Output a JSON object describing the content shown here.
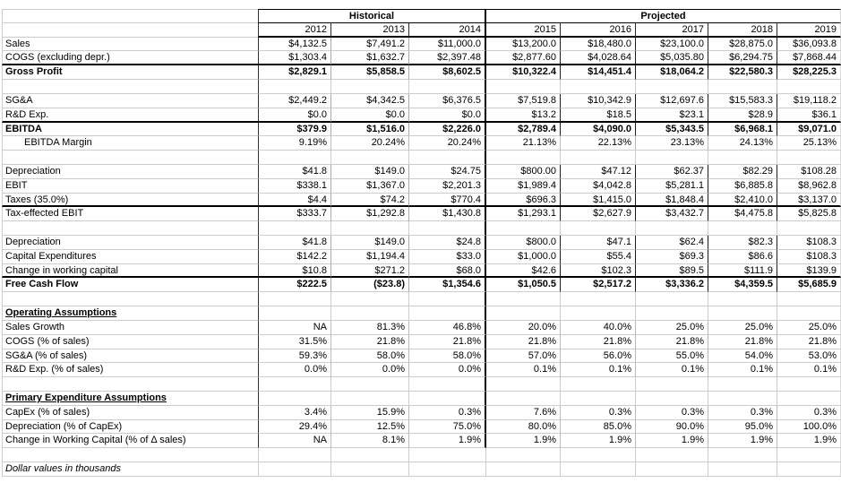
{
  "sheet": {
    "group_headers": [
      {
        "label": "Historical",
        "span": 3
      },
      {
        "label": "Projected",
        "span": 5
      }
    ],
    "years": [
      "2012",
      "2013",
      "2014",
      "2015",
      "2016",
      "2017",
      "2018",
      "2019"
    ],
    "rows": [
      {
        "label": "Sales",
        "style": "money",
        "values": [
          "$4,132.5",
          "$7,491.2",
          "$11,000.0",
          "$13,200.0",
          "$18,480.0",
          "$23,100.0",
          "$28,875.0",
          "$36,093.8"
        ]
      },
      {
        "label": "COGS (excluding depr.)",
        "style": "money",
        "rule_below": true,
        "values": [
          "$1,303.4",
          "$1,632.7",
          "$2,397.48",
          "$2,877.60",
          "$4,028.64",
          "$5,035.80",
          "$6,294.75",
          "$7,868.44"
        ]
      },
      {
        "label": "Gross Profit",
        "style": "money",
        "bold": true,
        "values": [
          "$2,829.1",
          "$5,858.5",
          "$8,602.5",
          "$10,322.4",
          "$14,451.4",
          "$18,064.2",
          "$22,580.3",
          "$28,225.3"
        ]
      },
      {
        "label": "",
        "style": "blank",
        "values": []
      },
      {
        "label": "SG&A",
        "style": "money",
        "values": [
          "$2,449.2",
          "$4,342.5",
          "$6,376.5",
          "$7,519.8",
          "$10,342.9",
          "$12,697.6",
          "$15,583.3",
          "$19,118.2"
        ]
      },
      {
        "label": "R&D Exp.",
        "style": "money",
        "rule_below": true,
        "values": [
          "$0.0",
          "$0.0",
          "$0.0",
          "$13.2",
          "$18.5",
          "$23.1",
          "$28.9",
          "$36.1"
        ]
      },
      {
        "label": "EBITDA",
        "style": "money",
        "bold": true,
        "values": [
          "$379.9",
          "$1,516.0",
          "$2,226.0",
          "$2,789.4",
          "$4,090.0",
          "$5,343.5",
          "$6,968.1",
          "$9,071.0"
        ]
      },
      {
        "label": "EBITDA Margin",
        "style": "pct",
        "indent": true,
        "values": [
          "9.19%",
          "20.24%",
          "20.24%",
          "21.13%",
          "22.13%",
          "23.13%",
          "24.13%",
          "25.13%"
        ]
      },
      {
        "label": "",
        "style": "blank",
        "values": []
      },
      {
        "label": "Depreciation",
        "style": "money",
        "values": [
          "$41.8",
          "$149.0",
          "$24.75",
          "$800.00",
          "$47.12",
          "$62.37",
          "$82.29",
          "$108.28"
        ]
      },
      {
        "label": "EBIT",
        "style": "money",
        "values": [
          "$338.1",
          "$1,367.0",
          "$2,201.3",
          "$1,989.4",
          "$4,042.8",
          "$5,281.1",
          "$6,885.8",
          "$8,962.8"
        ]
      },
      {
        "label": "Taxes (35.0%)",
        "style": "money",
        "rule_below": true,
        "values": [
          "$4.4",
          "$74.2",
          "$770.4",
          "$696.3",
          "$1,415.0",
          "$1,848.4",
          "$2,410.0",
          "$3,137.0"
        ]
      },
      {
        "label": "Tax-effected EBIT",
        "style": "money",
        "values": [
          "$333.7",
          "$1,292.8",
          "$1,430.8",
          "$1,293.1",
          "$2,627.9",
          "$3,432.7",
          "$4,475.8",
          "$5,825.8"
        ]
      },
      {
        "label": "",
        "style": "blank",
        "values": []
      },
      {
        "label": "Depreciation",
        "style": "money",
        "values": [
          "$41.8",
          "$149.0",
          "$24.8",
          "$800.0",
          "$47.1",
          "$62.4",
          "$82.3",
          "$108.3"
        ]
      },
      {
        "label": "Capital Expenditures",
        "style": "money",
        "values": [
          "$142.2",
          "$1,194.4",
          "$33.0",
          "$1,000.0",
          "$55.4",
          "$69.3",
          "$86.6",
          "$108.3"
        ]
      },
      {
        "label": "Change in working capital",
        "style": "money",
        "rule_below": true,
        "values": [
          "$10.8",
          "$271.2",
          "$68.0",
          "$42.6",
          "$102.3",
          "$89.5",
          "$111.9",
          "$139.9"
        ]
      },
      {
        "label": "Free Cash Flow",
        "style": "money",
        "bold": true,
        "values": [
          "$222.5",
          "($23.8)",
          "$1,354.6",
          "$1,050.5",
          "$2,517.2",
          "$3,336.2",
          "$4,359.5",
          "$5,685.9"
        ]
      },
      {
        "label": "",
        "style": "blank",
        "values": []
      },
      {
        "label": "Operating Assumptions",
        "style": "section",
        "values": []
      },
      {
        "label": "Sales Growth",
        "style": "pct",
        "values": [
          "NA",
          "81.3%",
          "46.8%",
          "20.0%",
          "40.0%",
          "25.0%",
          "25.0%",
          "25.0%"
        ]
      },
      {
        "label": "COGS (% of sales)",
        "style": "pct",
        "values": [
          "31.5%",
          "21.8%",
          "21.8%",
          "21.8%",
          "21.8%",
          "21.8%",
          "21.8%",
          "21.8%"
        ]
      },
      {
        "label": "SG&A (% of sales)",
        "style": "pct",
        "values": [
          "59.3%",
          "58.0%",
          "58.0%",
          "57.0%",
          "56.0%",
          "55.0%",
          "54.0%",
          "53.0%"
        ]
      },
      {
        "label": "R&D Exp. (% of sales)",
        "style": "pct",
        "values": [
          "0.0%",
          "0.0%",
          "0.0%",
          "0.1%",
          "0.1%",
          "0.1%",
          "0.1%",
          "0.1%"
        ]
      },
      {
        "label": "",
        "style": "blank",
        "values": []
      },
      {
        "label": "Primary Expenditure Assumptions",
        "style": "section",
        "values": []
      },
      {
        "label": "CapEx (% of sales)",
        "style": "pct",
        "values": [
          "3.4%",
          "15.9%",
          "0.3%",
          "7.6%",
          "0.3%",
          "0.3%",
          "0.3%",
          "0.3%"
        ]
      },
      {
        "label": "Depreciation (% of CapEx)",
        "style": "pct",
        "values": [
          "29.4%",
          "12.5%",
          "75.0%",
          "80.0%",
          "85.0%",
          "90.0%",
          "95.0%",
          "100.0%"
        ]
      },
      {
        "label": "Change in Working Capital (% of Δ sales)",
        "style": "pct",
        "values": [
          "NA",
          "8.1%",
          "1.9%",
          "1.9%",
          "1.9%",
          "1.9%",
          "1.9%",
          "1.9%"
        ]
      },
      {
        "label": "",
        "style": "blank",
        "tail": true,
        "values": []
      },
      {
        "label": "Dollar values in thousands",
        "style": "footnote",
        "tail": true,
        "values": []
      }
    ]
  }
}
